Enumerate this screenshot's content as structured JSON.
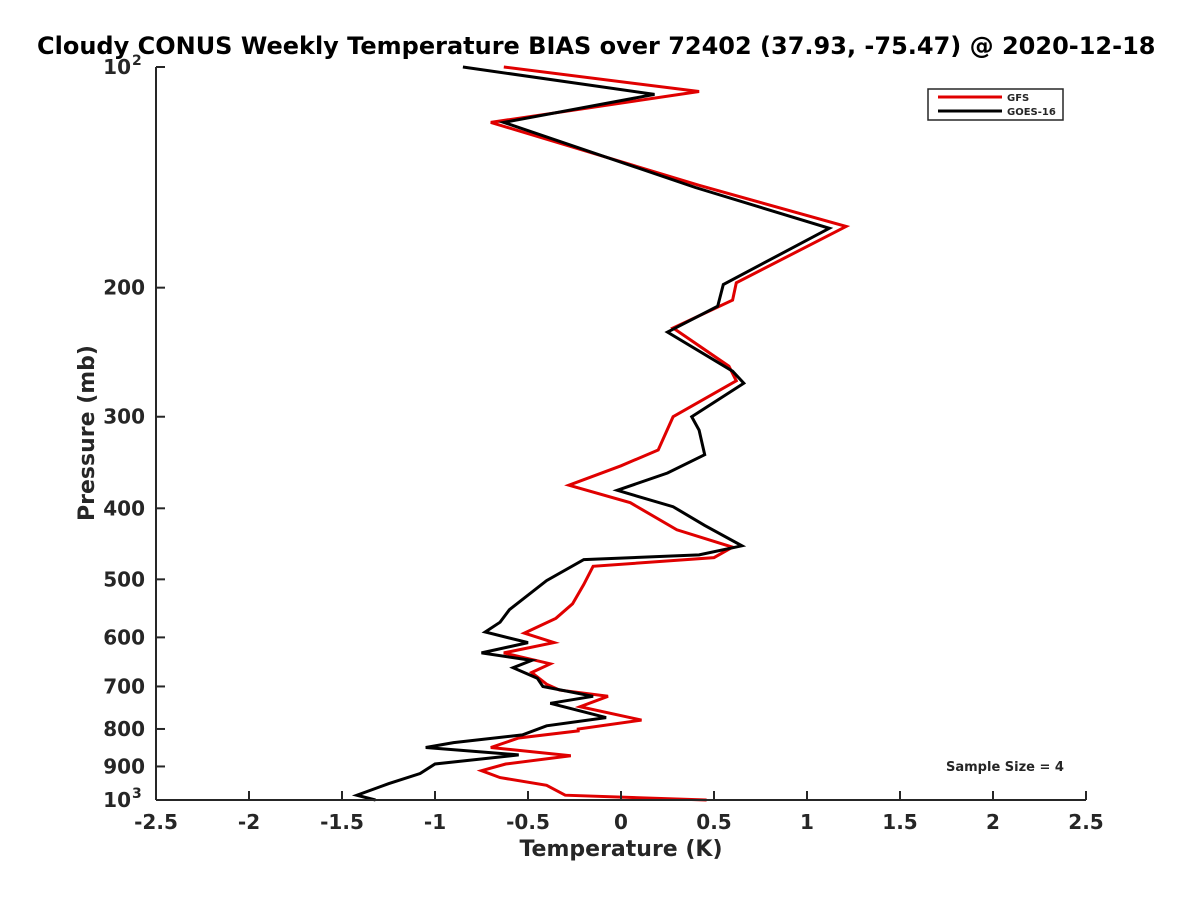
{
  "chart_data": {
    "type": "line",
    "title": "Cloudy CONUS Weekly Temperature BIAS over 72402 (37.93, -75.47) @ 2020-12-18",
    "xlabel": "Temperature (K)",
    "ylabel": "Pressure (mb)",
    "xlim": [
      -2.5,
      2.5
    ],
    "ylim": [
      100,
      1000
    ],
    "y_scale": "log",
    "y_reversed": true,
    "grid": false,
    "legend_position": "top-right",
    "x_ticks": [
      -2.5,
      -2,
      -1.5,
      -1,
      -0.5,
      0,
      0.5,
      1,
      1.5,
      2,
      2.5
    ],
    "x_tick_labels": [
      "-2.5",
      "-2",
      "-1.5",
      "-1",
      "-0.5",
      "0",
      "0.5",
      "1",
      "1.5",
      "2",
      "2.5"
    ],
    "y_ticks": [
      {
        "value": 100,
        "label": "10",
        "sup": "2"
      },
      {
        "value": 200,
        "label": "200",
        "sup": ""
      },
      {
        "value": 300,
        "label": "300",
        "sup": ""
      },
      {
        "value": 400,
        "label": "400",
        "sup": ""
      },
      {
        "value": 500,
        "label": "500",
        "sup": ""
      },
      {
        "value": 600,
        "label": "600",
        "sup": ""
      },
      {
        "value": 700,
        "label": "700",
        "sup": ""
      },
      {
        "value": 800,
        "label": "800",
        "sup": ""
      },
      {
        "value": 900,
        "label": "900",
        "sup": ""
      },
      {
        "value": 1000,
        "label": "10",
        "sup": "3"
      }
    ],
    "annotation": "Sample Size = 4",
    "series": [
      {
        "name": "GFS",
        "color": "#e00000",
        "points": [
          {
            "x": 0.46,
            "y": 1000
          },
          {
            "x": -0.3,
            "y": 985
          },
          {
            "x": -0.4,
            "y": 955
          },
          {
            "x": -0.65,
            "y": 932
          },
          {
            "x": -0.75,
            "y": 912
          },
          {
            "x": -0.62,
            "y": 893
          },
          {
            "x": -0.27,
            "y": 870
          },
          {
            "x": -0.7,
            "y": 848
          },
          {
            "x": -0.55,
            "y": 823
          },
          {
            "x": -0.23,
            "y": 805
          },
          {
            "x": -0.23,
            "y": 800
          },
          {
            "x": 0.11,
            "y": 778
          },
          {
            "x": -0.22,
            "y": 746
          },
          {
            "x": -0.07,
            "y": 722
          },
          {
            "x": -0.33,
            "y": 708
          },
          {
            "x": -0.4,
            "y": 695
          },
          {
            "x": -0.48,
            "y": 670
          },
          {
            "x": -0.38,
            "y": 652
          },
          {
            "x": -0.63,
            "y": 630
          },
          {
            "x": -0.36,
            "y": 610
          },
          {
            "x": -0.52,
            "y": 592
          },
          {
            "x": -0.35,
            "y": 565
          },
          {
            "x": -0.26,
            "y": 540
          },
          {
            "x": -0.2,
            "y": 508
          },
          {
            "x": -0.15,
            "y": 480
          },
          {
            "x": 0.5,
            "y": 467
          },
          {
            "x": 0.6,
            "y": 452
          },
          {
            "x": 0.3,
            "y": 428
          },
          {
            "x": 0.05,
            "y": 393
          },
          {
            "x": -0.28,
            "y": 372
          },
          {
            "x": 0.0,
            "y": 350
          },
          {
            "x": 0.2,
            "y": 333
          },
          {
            "x": 0.28,
            "y": 300
          },
          {
            "x": 0.62,
            "y": 268
          },
          {
            "x": 0.58,
            "y": 256
          },
          {
            "x": 0.28,
            "y": 227
          },
          {
            "x": 0.6,
            "y": 208
          },
          {
            "x": 0.62,
            "y": 197
          },
          {
            "x": 1.21,
            "y": 165
          },
          {
            "x": 0.42,
            "y": 145
          },
          {
            "x": -0.7,
            "y": 119
          },
          {
            "x": 0.42,
            "y": 108
          },
          {
            "x": -0.63,
            "y": 100
          }
        ]
      },
      {
        "name": "GOES-16",
        "color": "#000000",
        "points": [
          {
            "x": -1.32,
            "y": 1000
          },
          {
            "x": -1.42,
            "y": 985
          },
          {
            "x": -1.25,
            "y": 950
          },
          {
            "x": -1.08,
            "y": 920
          },
          {
            "x": -1.0,
            "y": 893
          },
          {
            "x": -0.55,
            "y": 868
          },
          {
            "x": -1.05,
            "y": 848
          },
          {
            "x": -0.9,
            "y": 835
          },
          {
            "x": -0.53,
            "y": 815
          },
          {
            "x": -0.4,
            "y": 792
          },
          {
            "x": -0.08,
            "y": 772
          },
          {
            "x": -0.38,
            "y": 738
          },
          {
            "x": -0.15,
            "y": 722
          },
          {
            "x": -0.42,
            "y": 700
          },
          {
            "x": -0.45,
            "y": 682
          },
          {
            "x": -0.58,
            "y": 660
          },
          {
            "x": -0.48,
            "y": 645
          },
          {
            "x": -0.75,
            "y": 630
          },
          {
            "x": -0.5,
            "y": 610
          },
          {
            "x": -0.73,
            "y": 590
          },
          {
            "x": -0.65,
            "y": 572
          },
          {
            "x": -0.6,
            "y": 550
          },
          {
            "x": -0.4,
            "y": 502
          },
          {
            "x": -0.2,
            "y": 470
          },
          {
            "x": 0.42,
            "y": 463
          },
          {
            "x": 0.65,
            "y": 450
          },
          {
            "x": 0.45,
            "y": 422
          },
          {
            "x": 0.28,
            "y": 398
          },
          {
            "x": -0.02,
            "y": 378
          },
          {
            "x": 0.25,
            "y": 358
          },
          {
            "x": 0.45,
            "y": 338
          },
          {
            "x": 0.42,
            "y": 313
          },
          {
            "x": 0.38,
            "y": 300
          },
          {
            "x": 0.66,
            "y": 270
          },
          {
            "x": 0.6,
            "y": 260
          },
          {
            "x": 0.25,
            "y": 230
          },
          {
            "x": 0.52,
            "y": 212
          },
          {
            "x": 0.55,
            "y": 198
          },
          {
            "x": 1.12,
            "y": 166
          },
          {
            "x": 0.4,
            "y": 146
          },
          {
            "x": -0.63,
            "y": 119
          },
          {
            "x": 0.18,
            "y": 109
          },
          {
            "x": -0.85,
            "y": 100
          }
        ]
      }
    ]
  }
}
